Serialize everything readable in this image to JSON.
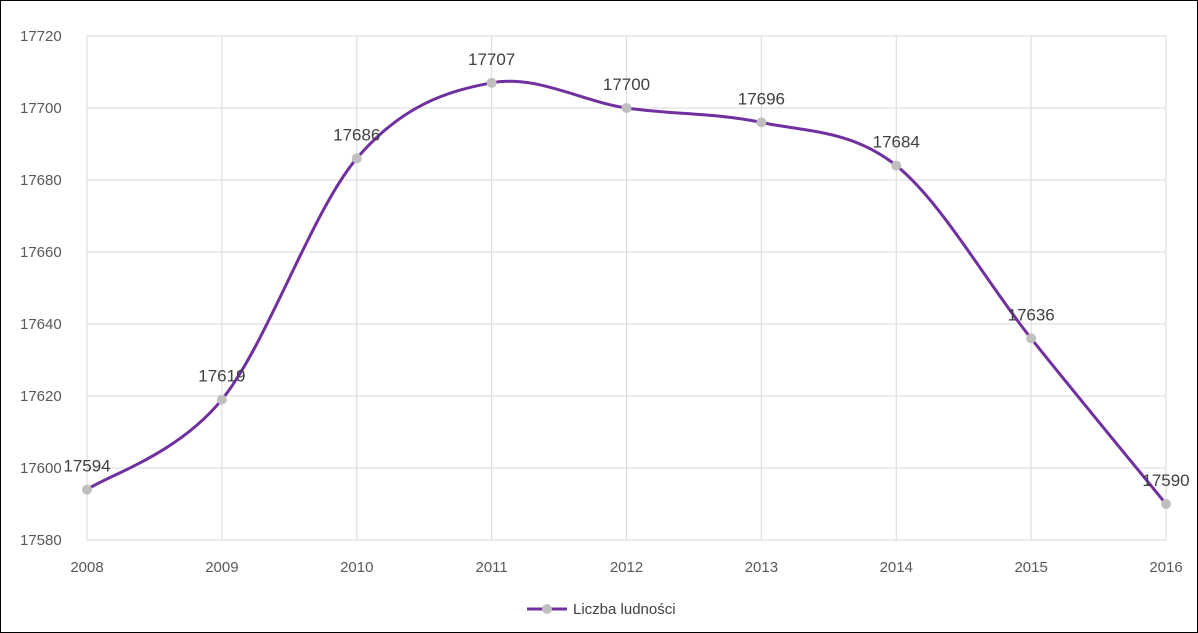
{
  "chart_data": {
    "type": "line",
    "x": [
      2008,
      2009,
      2010,
      2011,
      2012,
      2013,
      2014,
      2015,
      2016
    ],
    "categories": [
      "2008",
      "2009",
      "2010",
      "2011",
      "2012",
      "2013",
      "2014",
      "2015",
      "2016"
    ],
    "series": [
      {
        "name": "Liczba ludności",
        "values": [
          17594,
          17619,
          17686,
          17707,
          17700,
          17696,
          17684,
          17636,
          17590
        ],
        "labels": [
          "17594",
          "17619",
          "17686",
          "17707",
          "17700",
          "17696",
          "17684",
          "17636",
          "17590"
        ],
        "line_color": "#7030a0",
        "marker_color": "#bfbfbf"
      }
    ],
    "title": "",
    "xlabel": "",
    "ylabel": "",
    "ylim": [
      17580,
      17720
    ],
    "y_ticks": [
      "17580",
      "17600",
      "17620",
      "17640",
      "17660",
      "17680",
      "17700",
      "17720"
    ],
    "grid": true,
    "smoothed": true,
    "legend": "bottom-center",
    "grid_color": "#d9d9d9"
  }
}
